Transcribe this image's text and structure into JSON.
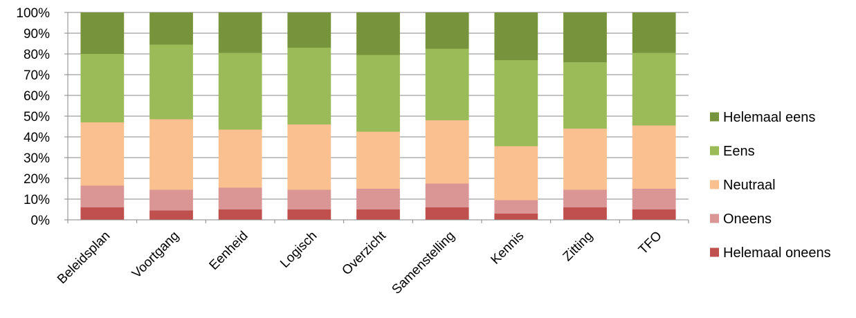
{
  "chart_data": {
    "type": "bar",
    "stacked": true,
    "percent_stacked": true,
    "categories": [
      "Beleidsplan",
      "Voortgang",
      "Eenheid",
      "Logisch",
      "Overzicht",
      "Samenstelling",
      "Kennis",
      "Zitting",
      "TFO"
    ],
    "series": [
      {
        "name": "Helemaal oneens",
        "color": "#c0504d",
        "values": [
          6,
          4.5,
          5,
          5,
          5,
          6,
          3,
          6,
          5
        ]
      },
      {
        "name": "Oneens",
        "color": "#d99694",
        "values": [
          10.5,
          10,
          10.5,
          9.5,
          10,
          11.5,
          6.5,
          8.5,
          10
        ]
      },
      {
        "name": "Neutraal",
        "color": "#fac090",
        "values": [
          30.5,
          34,
          28,
          31.5,
          27.5,
          30.5,
          26,
          29.5,
          30.5
        ]
      },
      {
        "name": "Eens",
        "color": "#9bbb59",
        "values": [
          33,
          36,
          37,
          37,
          37,
          34.5,
          41.5,
          32,
          35
        ]
      },
      {
        "name": "Helemaal eens",
        "color": "#77933c",
        "values": [
          20,
          15.5,
          19.5,
          17,
          20.5,
          17.5,
          23,
          24,
          19.5
        ]
      }
    ],
    "yticks": [
      "0%",
      "10%",
      "20%",
      "30%",
      "40%",
      "50%",
      "60%",
      "70%",
      "80%",
      "90%",
      "100%"
    ],
    "ylim": [
      0,
      100
    ],
    "grid": true,
    "legend": "right",
    "legend_order": [
      "Helemaal eens",
      "Eens",
      "Neutraal",
      "Oneens",
      "Helemaal oneens"
    ]
  }
}
